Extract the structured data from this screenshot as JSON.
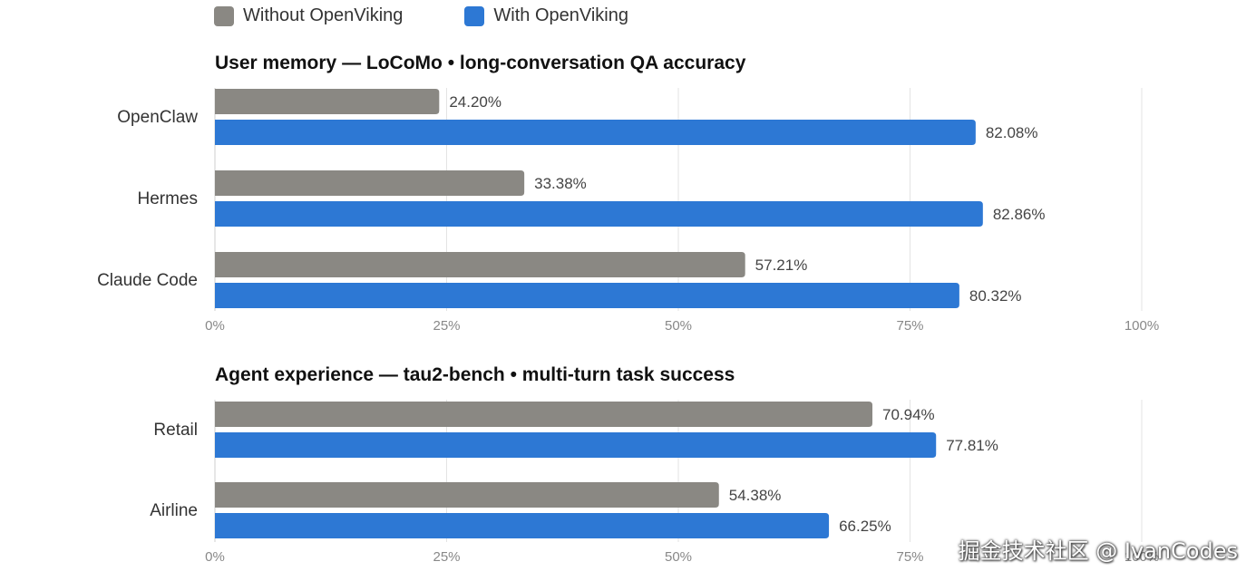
{
  "legend": {
    "without_label": "Without OpenViking",
    "with_label": "With OpenViking"
  },
  "colors": {
    "without": "#8a8883",
    "with": "#2d78d4",
    "grid": "#e3e3e3"
  },
  "watermark": "掘金技术社区 @ IvanCodes",
  "chart_data": [
    {
      "type": "bar",
      "orientation": "horizontal",
      "title": "User memory — LoCoMo • long-conversation QA accuracy",
      "categories": [
        "OpenClaw",
        "Hermes",
        "Claude Code"
      ],
      "series": [
        {
          "name": "Without OpenViking",
          "values": [
            24.2,
            33.38,
            57.21
          ],
          "labels": [
            "24.20%",
            "33.38%",
            "57.21%"
          ]
        },
        {
          "name": "With OpenViking",
          "values": [
            82.08,
            82.86,
            80.32
          ],
          "labels": [
            "82.08%",
            "82.86%",
            "80.32%"
          ]
        }
      ],
      "xlim": [
        0,
        100
      ],
      "ticks": [
        "0%",
        "25%",
        "50%",
        "75%",
        "100%"
      ],
      "grid": true
    },
    {
      "type": "bar",
      "orientation": "horizontal",
      "title": "Agent experience — tau2-bench • multi-turn task success",
      "categories": [
        "Retail",
        "Airline"
      ],
      "series": [
        {
          "name": "Without OpenViking",
          "values": [
            70.94,
            54.38
          ],
          "labels": [
            "70.94%",
            "54.38%"
          ]
        },
        {
          "name": "With OpenViking",
          "values": [
            77.81,
            66.25
          ],
          "labels": [
            "77.81%",
            "66.25%"
          ]
        }
      ],
      "xlim": [
        0,
        100
      ],
      "ticks": [
        "0%",
        "25%",
        "50%",
        "75%",
        "100%"
      ],
      "grid": true
    }
  ]
}
